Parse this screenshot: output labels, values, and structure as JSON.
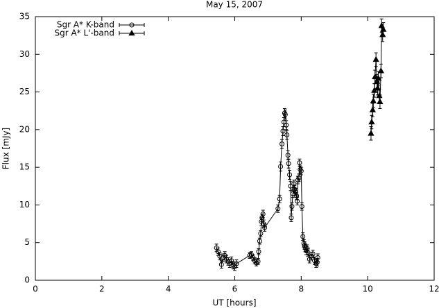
{
  "chart_data": {
    "type": "line",
    "title": "May 15, 2007",
    "xlabel": "UT [hours]",
    "ylabel": "Flux [mJy]",
    "xlim": [
      0,
      12
    ],
    "xticks": [
      0,
      2,
      4,
      6,
      8,
      10,
      12
    ],
    "ylim": [
      0,
      35
    ],
    "yticks": [
      0,
      5,
      10,
      15,
      20,
      25,
      30,
      35
    ],
    "legend": "top-left",
    "series": [
      {
        "name": "Sgr A* K-band",
        "color": "#000000",
        "marker": "circle",
        "x": [
          5.45,
          5.5,
          5.55,
          5.6,
          5.65,
          5.7,
          5.75,
          5.8,
          5.85,
          5.9,
          5.95,
          6.0,
          6.05,
          6.45,
          6.5,
          6.55,
          6.6,
          6.65,
          6.7,
          6.72,
          6.75,
          6.78,
          6.8,
          6.82,
          6.85,
          6.87,
          6.9,
          7.3,
          7.35,
          7.38,
          7.42,
          7.45,
          7.48,
          7.5,
          7.52,
          7.55,
          7.57,
          7.6,
          7.62,
          7.65,
          7.68,
          7.7,
          7.72,
          7.75,
          7.78,
          7.8,
          7.83,
          7.86,
          7.88,
          7.9,
          7.93,
          7.95,
          7.97,
          8.0,
          8.02,
          8.05,
          8.08,
          8.1,
          8.12,
          8.15,
          8.18,
          8.2,
          8.25,
          8.3,
          8.35,
          8.4,
          8.45,
          8.48,
          8.5
        ],
        "values": [
          4.3,
          3.8,
          3.2,
          2.1,
          3.0,
          3.3,
          2.8,
          2.5,
          2.2,
          2.6,
          2.0,
          1.8,
          2.2,
          3.3,
          3.4,
          3.0,
          2.6,
          2.3,
          2.5,
          3.8,
          5.2,
          6.2,
          7.8,
          8.3,
          8.8,
          7.5,
          7.0,
          9.5,
          10.8,
          15.1,
          18.1,
          19.8,
          21.0,
          22.2,
          22.0,
          20.6,
          19.3,
          16.6,
          15.5,
          14.0,
          12.5,
          8.3,
          9.8,
          11.5,
          12.8,
          12.1,
          11.7,
          11.2,
          10.5,
          13.3,
          13.6,
          15.6,
          14.7,
          14.5,
          9.8,
          5.8,
          4.9,
          4.6,
          4.3,
          3.9,
          4.2,
          3.7,
          2.8,
          3.2,
          3.5,
          2.6,
          2.2,
          2.4,
          3.0
        ],
        "errors": [
          0.5,
          0.5,
          0.5,
          0.5,
          0.5,
          0.5,
          0.5,
          0.5,
          0.5,
          0.5,
          0.5,
          0.5,
          0.5,
          0.4,
          0.4,
          0.4,
          0.4,
          0.4,
          0.4,
          0.4,
          0.4,
          0.4,
          0.5,
          0.5,
          0.5,
          0.5,
          0.5,
          0.5,
          0.5,
          0.6,
          0.6,
          0.6,
          0.6,
          0.6,
          0.6,
          0.6,
          0.6,
          0.6,
          0.6,
          0.6,
          0.6,
          0.5,
          0.5,
          0.5,
          0.5,
          0.5,
          0.5,
          0.5,
          0.5,
          0.5,
          0.5,
          0.5,
          0.5,
          0.5,
          0.5,
          0.5,
          0.5,
          0.5,
          0.5,
          0.5,
          0.5,
          0.5,
          0.5,
          0.5,
          0.5,
          0.5,
          0.5,
          0.5,
          0.5
        ]
      },
      {
        "name": "Sgr A* L'-band",
        "color": "#000000",
        "marker": "triangle",
        "x": [
          10.1,
          10.12,
          10.15,
          10.17,
          10.2,
          10.22,
          10.25,
          10.28,
          10.3,
          10.32,
          10.35,
          10.37,
          10.4,
          10.42,
          10.45,
          10.47
        ],
        "values": [
          19.5,
          21.0,
          22.6,
          23.8,
          25.2,
          27.0,
          29.3,
          26.4,
          25.5,
          26.8,
          24.5,
          23.7,
          27.8,
          33.8,
          32.6,
          33.3
        ],
        "errors": [
          0.9,
          0.9,
          0.9,
          0.9,
          0.9,
          0.9,
          0.9,
          0.9,
          0.9,
          0.9,
          0.9,
          0.9,
          0.9,
          0.9,
          0.9,
          0.9
        ]
      }
    ]
  }
}
